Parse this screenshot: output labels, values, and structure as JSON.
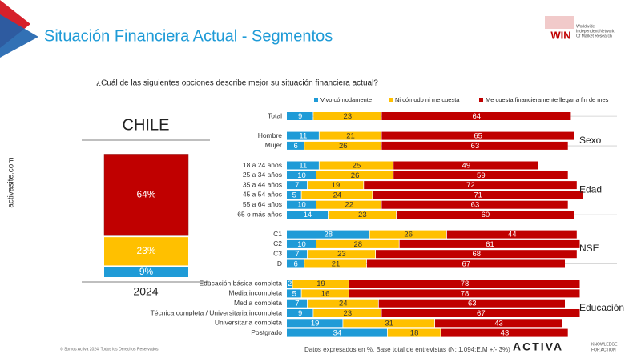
{
  "header": {
    "title": "Situación Financiera Actual - Segmentos",
    "question": "¿Cuál de las siguientes opciones describe mejor su situación financiera actual?",
    "site": "activasite.com"
  },
  "win_logo": {
    "name": "WIN",
    "tagline": [
      "Worldwide",
      "Independent Network",
      "Of Market Research"
    ]
  },
  "footer": {
    "copyright": "© Somos Activa 2024. Todos los Derechos Reservados.",
    "note": "Datos expresados en %. Base total de entrevistas (N: 1.094;E.M +/- 3%)",
    "brand": "ACTIVA",
    "brand_tagline": [
      "KNOWLEDGE",
      "FOR ACTION"
    ]
  },
  "chart_data": [
    {
      "type": "bar",
      "title": "CHILE",
      "categories": [
        "2024"
      ],
      "ylim": [
        0,
        100
      ],
      "series": [
        {
          "name": "Vivo cómodamente",
          "color": "#1f9bd7",
          "values": [
            9
          ],
          "value_labels": [
            "9%"
          ]
        },
        {
          "name": "Ni cómodo ni me cuesta",
          "color": "#ffc000",
          "values": [
            23
          ],
          "value_labels": [
            "23%"
          ]
        },
        {
          "name": "Me cuesta financieramente llegar a fin de mes",
          "color": "#c00000",
          "values": [
            64
          ],
          "value_labels": [
            "64%"
          ]
        }
      ]
    },
    {
      "type": "barh",
      "xlim": [
        0,
        100
      ],
      "categories": [
        "Total",
        "Hombre",
        "Mujer",
        "18 a 24 años",
        "25 a 34 años",
        "35 a 44 años",
        "45 a 54 años",
        "55 a 64 años",
        "65 o más años",
        "C1",
        "C2",
        "C3",
        "D",
        "Educación básica completa",
        "Media incompleta",
        "Media completa",
        "Técnica completa / Universitaria incompleta",
        "Universitaria completa",
        "Postgrado"
      ],
      "category_groups": [
        null,
        "Sexo",
        "Sexo",
        "Edad",
        "Edad",
        "Edad",
        "Edad",
        "Edad",
        "Edad",
        "NSE",
        "NSE",
        "NSE",
        "NSE",
        "Educación",
        "Educación",
        "Educación",
        "Educación",
        "Educación",
        "Educación"
      ],
      "series": [
        {
          "name": "Vivo cómodamente",
          "color": "#1f9bd7",
          "values": [
            9,
            11,
            6,
            11,
            10,
            7,
            5,
            10,
            14,
            28,
            10,
            7,
            6,
            2,
            5,
            7,
            9,
            19,
            34
          ]
        },
        {
          "name": "Ni cómodo ni me cuesta",
          "color": "#ffc000",
          "values": [
            23,
            21,
            26,
            25,
            26,
            19,
            24,
            22,
            23,
            26,
            28,
            23,
            21,
            19,
            16,
            24,
            23,
            31,
            18
          ]
        },
        {
          "name": "Me cuesta financieramente llegar a fin de mes",
          "color": "#c00000",
          "values": [
            64,
            65,
            63,
            49,
            59,
            72,
            71,
            63,
            60,
            44,
            61,
            68,
            67,
            78,
            78,
            63,
            67,
            43,
            43
          ]
        }
      ]
    }
  ]
}
